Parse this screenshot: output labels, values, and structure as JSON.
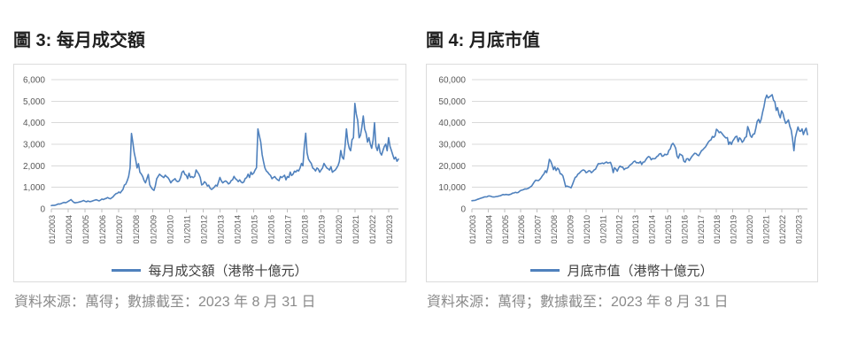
{
  "figures": [
    {
      "title": "圖 3: 每月成交額",
      "legend": "每月成交額（港幣十億元）",
      "source": "資料來源：萬得；數據截至：2023 年 8 月 31 日"
    },
    {
      "title": "圖 4: 月底市值",
      "legend": "月底市值（港幣十億元）",
      "source": "資料來源：萬得；數據截至：2023 年 8 月 31 日"
    }
  ],
  "theme": {
    "line_color": "#4f81bd",
    "grid_color": "#d9d9d9",
    "axis_color": "#bfbfbf",
    "tick_label_color": "#595959",
    "title_color": "#1f1f1f",
    "source_color": "#8a8a8a",
    "box_border_color": "#dcdcdc"
  },
  "chart_data": [
    {
      "type": "line",
      "title": "圖 3: 每月成交額",
      "ylabel": "",
      "xlabel": "",
      "x_frequency": "monthly",
      "x_range": [
        "01/2003",
        "08/2023"
      ],
      "ylim": [
        0,
        6000
      ],
      "grid": "horizontal",
      "legend_position": "bottom",
      "ytick_values": [
        0,
        1000,
        2000,
        3000,
        4000,
        5000,
        6000
      ],
      "ytick_labels": [
        "0",
        "1,000",
        "2,000",
        "3,000",
        "4,000",
        "5,000",
        "6,000"
      ],
      "xtick_labels": [
        "01/2003",
        "01/2004",
        "01/2005",
        "01/2006",
        "01/2007",
        "01/2008",
        "01/2009",
        "01/2010",
        "01/2011",
        "01/2012",
        "01/2013",
        "01/2014",
        "01/2015",
        "01/2016",
        "01/2017",
        "01/2018",
        "01/2019",
        "01/2020",
        "01/2021",
        "01/2022",
        "01/2023"
      ],
      "xtick_positions": [
        0,
        12,
        24,
        36,
        48,
        60,
        72,
        84,
        96,
        108,
        120,
        132,
        144,
        156,
        168,
        180,
        192,
        204,
        216,
        228,
        240
      ],
      "series": [
        {
          "name": "每月成交額（港幣十億元）",
          "color": "#4f81bd",
          "values": [
            150,
            165,
            160,
            175,
            200,
            230,
            220,
            245,
            275,
            300,
            285,
            310,
            345,
            385,
            430,
            360,
            300,
            280,
            290,
            305,
            320,
            335,
            360,
            390,
            350,
            330,
            365,
            340,
            335,
            360,
            385,
            405,
            425,
            395,
            370,
            405,
            455,
            430,
            465,
            485,
            525,
            490,
            470,
            515,
            565,
            645,
            705,
            725,
            785,
            740,
            825,
            905,
            1105,
            1150,
            1305,
            1505,
            1900,
            3500,
            3100,
            2600,
            2300,
            1900,
            2100,
            1700,
            1620,
            1500,
            1320,
            1210,
            1400,
            1600,
            1120,
            1000,
            910,
            860,
            1060,
            1400,
            1510,
            1610,
            1550,
            1500,
            1450,
            1560,
            1500,
            1450,
            1350,
            1210,
            1300,
            1350,
            1400,
            1300,
            1260,
            1300,
            1460,
            1700,
            1760,
            1600,
            1560,
            1400,
            1650,
            1460,
            1500,
            1450,
            1510,
            1810,
            1700,
            1610,
            1450,
            1110,
            1150,
            1260,
            1200,
            1060,
            1100,
            960,
            900,
            950,
            1010,
            1100,
            1060,
            1260,
            1460,
            1300,
            1210,
            1260,
            1300,
            1250,
            1160,
            1200,
            1310,
            1350,
            1510,
            1400,
            1350,
            1260,
            1350,
            1250,
            1210,
            1250,
            1410,
            1450,
            1610,
            1460,
            1710,
            1600,
            1660,
            1800,
            1910,
            3710,
            3400,
            3100,
            2510,
            2200,
            1900,
            1760,
            1700,
            1610,
            1550,
            1400,
            1460,
            1500,
            1410,
            1350,
            1310,
            1500,
            1450,
            1510,
            1560,
            1350,
            1500,
            1460,
            1710,
            1550,
            1610,
            1750,
            1710,
            1800,
            1760,
            1900,
            2110,
            2000,
            2900,
            3510,
            2600,
            2310,
            2200,
            2110,
            1900,
            1850,
            1760,
            1900,
            1850,
            1700,
            1810,
            1900,
            2110,
            2000,
            1900,
            1860,
            1800,
            1960,
            1700,
            1760,
            1800,
            1900,
            2010,
            2200,
            2710,
            2400,
            2310,
            2900,
            3710,
            3100,
            2810,
            2700,
            3210,
            3300,
            4900,
            4400,
            4110,
            3300,
            3410,
            3800,
            4310,
            3700,
            3510,
            3100,
            3310,
            3000,
            2810,
            3200,
            4000,
            2900,
            2710,
            3000,
            2610,
            2500,
            2710,
            2900,
            3010,
            2700,
            3310,
            2900,
            2710,
            2500,
            2310,
            2400,
            2210,
            2310
          ]
        }
      ]
    },
    {
      "type": "line",
      "title": "圖 4: 月底市值",
      "ylabel": "",
      "xlabel": "",
      "x_frequency": "monthly",
      "x_range": [
        "01/2003",
        "08/2023"
      ],
      "ylim": [
        0,
        60000
      ],
      "grid": "horizontal",
      "legend_position": "bottom",
      "ytick_values": [
        0,
        10000,
        20000,
        30000,
        40000,
        50000,
        60000
      ],
      "ytick_labels": [
        "0",
        "10,000",
        "20,000",
        "30,000",
        "40,000",
        "50,000",
        "60,000"
      ],
      "xtick_labels": [
        "01/2003",
        "01/2004",
        "01/2005",
        "01/2006",
        "01/2007",
        "01/2008",
        "01/2009",
        "01/2010",
        "01/2011",
        "01/2012",
        "01/2013",
        "01/2014",
        "01/2015",
        "01/2016",
        "01/2017",
        "01/2018",
        "01/2019",
        "01/2020",
        "01/2021",
        "01/2022",
        "01/2023"
      ],
      "xtick_positions": [
        0,
        12,
        24,
        36,
        48,
        60,
        72,
        84,
        96,
        108,
        120,
        132,
        144,
        156,
        168,
        180,
        192,
        204,
        216,
        228,
        240
      ],
      "series": [
        {
          "name": "月底市值（港幣十億元）",
          "color": "#4f81bd",
          "values": [
            3800,
            3850,
            3900,
            4100,
            4400,
            4600,
            4800,
            5050,
            5200,
            5500,
            5600,
            5550,
            5900,
            6000,
            5800,
            5600,
            5500,
            5600,
            5700,
            5800,
            6000,
            6100,
            6400,
            6650,
            6550,
            6700,
            6600,
            6500,
            6700,
            6900,
            7300,
            7400,
            7700,
            7500,
            7600,
            8100,
            8600,
            8700,
            8900,
            9300,
            9200,
            9400,
            9700,
            10200,
            10600,
            11600,
            12600,
            13300,
            13200,
            13100,
            13700,
            14500,
            15500,
            16200,
            17700,
            16800,
            19200,
            23000,
            22100,
            20500,
            18200,
            19500,
            17800,
            18900,
            18300,
            16300,
            16100,
            15300,
            13000,
            10300,
            10600,
            10300,
            10100,
            9800,
            11200,
            13000,
            14600,
            14900,
            16100,
            16500,
            17200,
            17800,
            18100,
            17800,
            16800,
            17100,
            17700,
            17600,
            16800,
            17400,
            18100,
            18400,
            19800,
            21000,
            20900,
            21100,
            21300,
            21000,
            21400,
            21800,
            21300,
            21400,
            21600,
            19900,
            16800,
            19100,
            18500,
            17500,
            19000,
            19900,
            19400,
            19400,
            18200,
            18800,
            18900,
            19200,
            20100,
            20600,
            21100,
            21900,
            22200,
            21400,
            21500,
            21300,
            22000,
            20600,
            21700,
            21800,
            22800,
            23700,
            24300,
            24000,
            22800,
            23400,
            23200,
            23400,
            24200,
            24600,
            25500,
            25700,
            24400,
            24600,
            25400,
            25100,
            25300,
            27200,
            27800,
            29800,
            30400,
            29500,
            28100,
            24500,
            23500,
            25500,
            25100,
            24700,
            22100,
            21700,
            23200,
            23300,
            22400,
            23400,
            24400,
            25100,
            25800,
            25700,
            25000,
            24700,
            25900,
            27000,
            27500,
            28200,
            28800,
            29900,
            31000,
            31700,
            32100,
            33600,
            33200,
            34000,
            37000,
            36400,
            35400,
            35800,
            35100,
            34200,
            33500,
            32900,
            33100,
            29900,
            31100,
            29900,
            31500,
            32400,
            33500,
            33700,
            31200,
            33000,
            32300,
            30900,
            31700,
            33100,
            33500,
            38200,
            36500,
            33900,
            33200,
            34700,
            34800,
            37500,
            40600,
            41600,
            39900,
            41700,
            45000,
            47500,
            51000,
            52800,
            51500,
            52000,
            52500,
            53000,
            50500,
            49700,
            45700,
            47000,
            43900,
            42300,
            45500,
            44200,
            41600,
            39700,
            40400,
            41300,
            38300,
            36600,
            32600,
            27000,
            33000,
            35500,
            38000,
            36200,
            36000,
            37100,
            34500,
            36300,
            37500,
            34500
          ]
        }
      ]
    }
  ]
}
